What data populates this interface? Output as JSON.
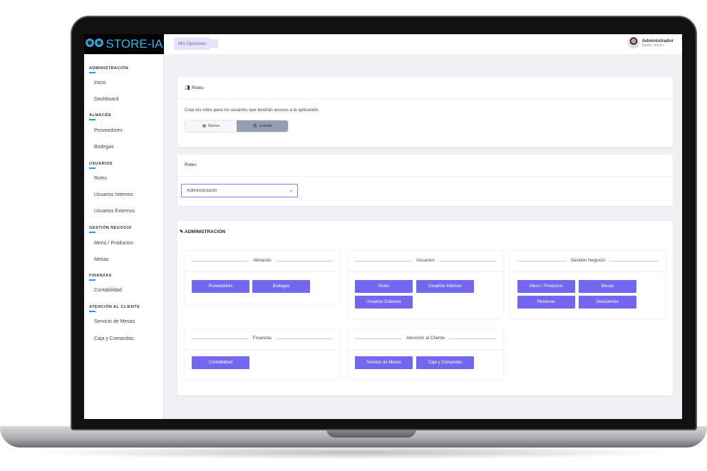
{
  "app": {
    "logo": "STORE-IA"
  },
  "topbar": {
    "menu_label": "Mis Opciones",
    "user_name": "Administrador",
    "user_role": "Master Admin"
  },
  "sidebar": {
    "sections": [
      {
        "title": "ADMINISTRACIÓN",
        "items": [
          "Inicio",
          "Dashboard"
        ]
      },
      {
        "title": "ALMACÉN",
        "items": [
          "Proveedores",
          "Bodegas"
        ]
      },
      {
        "title": "USUARIOS",
        "items": [
          "Roles",
          "Usuarios Internos",
          "Usuarios Externos"
        ]
      },
      {
        "title": "GESTIÓN NEGOCIO",
        "items": [
          "Menú / Productos",
          "Mesas"
        ]
      },
      {
        "title": "FINANZAS",
        "items": [
          "Contabilidad"
        ]
      },
      {
        "title": "ATENCIÓN AL CLIENTE",
        "items": [
          "Servicio de Mesas",
          "Caja y Comandas"
        ]
      }
    ]
  },
  "roles_card": {
    "title": "Roles",
    "description": "Crea los roles para los usuarios que tendrán acceso a la aplicación.",
    "tabs": [
      "Nuevo",
      "Listado"
    ],
    "active_tab": "Listado"
  },
  "select_card": {
    "title": "Roles",
    "selected": "Administración"
  },
  "modules_card": {
    "title": "ADMINISTRACIÓN",
    "groups": [
      {
        "title": "Almacén",
        "buttons": [
          "Proveedores",
          "Bodegas"
        ]
      },
      {
        "title": "Usuarios",
        "buttons": [
          "Roles",
          "Usuarios Internos",
          "Usuarios Externos"
        ]
      },
      {
        "title": "Gestión Negocio",
        "buttons": [
          "Menú / Productos",
          "Mesas",
          "Reservas",
          "Descuentos"
        ]
      },
      {
        "title": "Finanzas",
        "buttons": [
          "Contabilidad"
        ]
      },
      {
        "title": "Atención al Cliente",
        "buttons": [
          "Servicio de Mesas",
          "Caja y Comandas"
        ]
      }
    ]
  },
  "colors": {
    "accent": "#7367f0",
    "logo_bg": "#000000",
    "content_bg": "#eff0f4",
    "active_tab": "#949db2"
  }
}
